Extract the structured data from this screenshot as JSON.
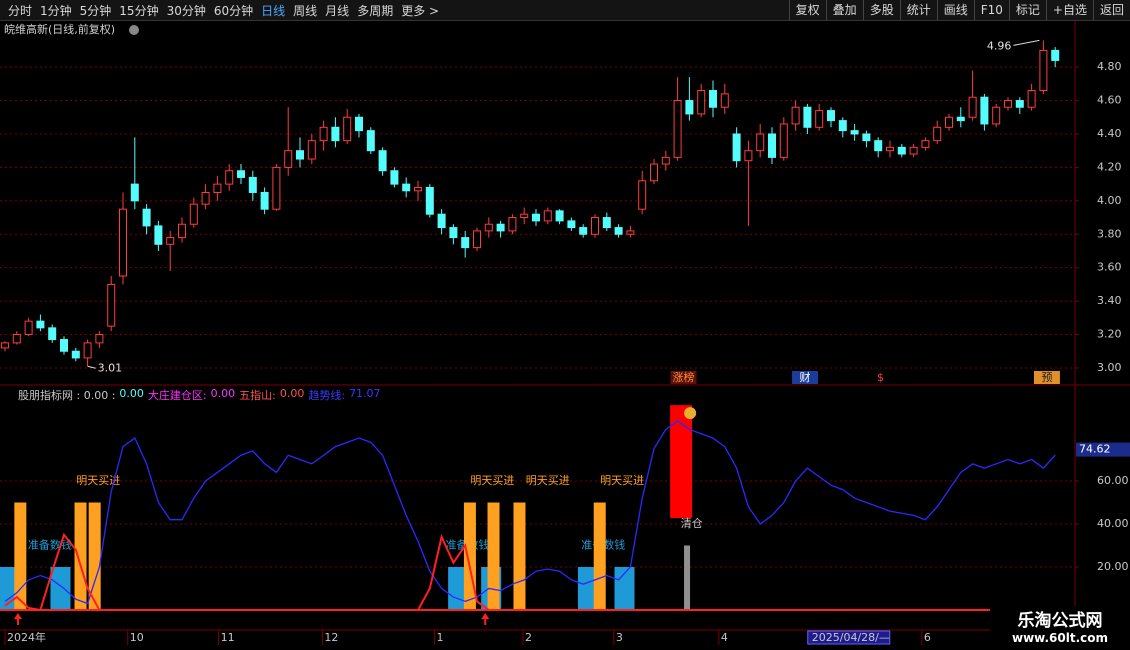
{
  "toolbar": {
    "left": [
      "分时",
      "1分钟",
      "5分钟",
      "15分钟",
      "30分钟",
      "60分钟",
      "日线",
      "周线",
      "月线",
      "多周期",
      "更多 >"
    ],
    "active": 6,
    "right": [
      "复权",
      "叠加",
      "多股",
      "统计",
      "画线",
      "F10",
      "标记",
      "+自选",
      "返回"
    ]
  },
  "title": "皖维高新(日线,前复权)",
  "chart_data": [
    {
      "type": "candlestick",
      "up_color": "#ff3c3c",
      "down_color": "#54fcfc",
      "grid_color": "#7a0000",
      "ylim": [
        2.91,
        5.07
      ],
      "yticks": [
        {
          "value": 3,
          "label": "3.00"
        },
        {
          "value": 3.2,
          "label": "3.20"
        },
        {
          "value": 3.4,
          "label": "3.40"
        },
        {
          "value": 3.6,
          "label": "3.60"
        },
        {
          "value": 3.8,
          "label": "3.80"
        },
        {
          "value": 4,
          "label": "4.00"
        },
        {
          "value": 4.2,
          "label": "4.20"
        },
        {
          "value": 4.4,
          "label": "4.40"
        },
        {
          "value": 4.6,
          "label": "4.60"
        },
        {
          "value": 4.8,
          "label": "4.80"
        }
      ],
      "ohlc": [
        [
          3.12,
          3.16,
          3.1,
          3.15
        ],
        [
          3.15,
          3.22,
          3.14,
          3.2
        ],
        [
          3.2,
          3.3,
          3.19,
          3.28
        ],
        [
          3.28,
          3.32,
          3.22,
          3.24
        ],
        [
          3.24,
          3.26,
          3.15,
          3.17
        ],
        [
          3.17,
          3.19,
          3.08,
          3.1
        ],
        [
          3.1,
          3.12,
          3.04,
          3.06
        ],
        [
          3.06,
          3.17,
          3.01,
          3.15
        ],
        [
          3.15,
          3.22,
          3.12,
          3.2
        ],
        [
          3.25,
          3.55,
          3.22,
          3.5
        ],
        [
          3.55,
          4.05,
          3.5,
          3.95
        ],
        [
          4.1,
          4.38,
          3.95,
          4.0
        ],
        [
          3.95,
          3.98,
          3.8,
          3.85
        ],
        [
          3.85,
          3.88,
          3.7,
          3.74
        ],
        [
          3.74,
          3.82,
          3.58,
          3.78
        ],
        [
          3.78,
          3.9,
          3.75,
          3.86
        ],
        [
          3.86,
          4.02,
          3.84,
          3.98
        ],
        [
          3.98,
          4.1,
          3.95,
          4.05
        ],
        [
          4.05,
          4.15,
          4.0,
          4.1
        ],
        [
          4.1,
          4.22,
          4.06,
          4.18
        ],
        [
          4.18,
          4.22,
          4.1,
          4.14
        ],
        [
          4.14,
          4.18,
          4.0,
          4.05
        ],
        [
          4.05,
          4.08,
          3.92,
          3.95
        ],
        [
          3.95,
          4.22,
          3.94,
          4.2
        ],
        [
          4.2,
          4.56,
          4.15,
          4.3
        ],
        [
          4.3,
          4.38,
          4.2,
          4.25
        ],
        [
          4.25,
          4.4,
          4.22,
          4.36
        ],
        [
          4.36,
          4.48,
          4.3,
          4.44
        ],
        [
          4.44,
          4.5,
          4.32,
          4.36
        ],
        [
          4.36,
          4.55,
          4.34,
          4.5
        ],
        [
          4.5,
          4.52,
          4.38,
          4.42
        ],
        [
          4.42,
          4.44,
          4.28,
          4.3
        ],
        [
          4.3,
          4.32,
          4.15,
          4.18
        ],
        [
          4.18,
          4.2,
          4.08,
          4.1
        ],
        [
          4.1,
          4.14,
          4.02,
          4.06
        ],
        [
          4.06,
          4.12,
          4.0,
          4.08
        ],
        [
          4.08,
          4.1,
          3.9,
          3.92
        ],
        [
          3.92,
          3.95,
          3.8,
          3.84
        ],
        [
          3.84,
          3.86,
          3.74,
          3.78
        ],
        [
          3.78,
          3.82,
          3.66,
          3.72
        ],
        [
          3.72,
          3.84,
          3.7,
          3.82
        ],
        [
          3.82,
          3.9,
          3.78,
          3.86
        ],
        [
          3.86,
          3.88,
          3.78,
          3.82
        ],
        [
          3.82,
          3.92,
          3.8,
          3.9
        ],
        [
          3.9,
          3.96,
          3.86,
          3.92
        ],
        [
          3.92,
          3.95,
          3.85,
          3.88
        ],
        [
          3.88,
          3.96,
          3.86,
          3.94
        ],
        [
          3.94,
          3.95,
          3.86,
          3.88
        ],
        [
          3.88,
          3.9,
          3.82,
          3.84
        ],
        [
          3.84,
          3.86,
          3.78,
          3.8
        ],
        [
          3.8,
          3.92,
          3.78,
          3.9
        ],
        [
          3.9,
          3.93,
          3.82,
          3.84
        ],
        [
          3.84,
          3.86,
          3.78,
          3.8
        ],
        [
          3.8,
          3.85,
          3.78,
          3.82
        ],
        [
          3.95,
          4.18,
          3.92,
          4.12
        ],
        [
          4.12,
          4.25,
          4.1,
          4.22
        ],
        [
          4.22,
          4.3,
          4.18,
          4.26
        ],
        [
          4.26,
          4.74,
          4.24,
          4.6
        ],
        [
          4.6,
          4.74,
          4.48,
          4.52
        ],
        [
          4.52,
          4.7,
          4.5,
          4.66
        ],
        [
          4.66,
          4.72,
          4.5,
          4.56
        ],
        [
          4.56,
          4.7,
          4.52,
          4.64
        ],
        [
          4.4,
          4.44,
          4.2,
          4.24
        ],
        [
          4.24,
          4.36,
          3.85,
          4.3
        ],
        [
          4.3,
          4.46,
          4.26,
          4.4
        ],
        [
          4.4,
          4.44,
          4.22,
          4.26
        ],
        [
          4.26,
          4.5,
          4.24,
          4.46
        ],
        [
          4.46,
          4.6,
          4.42,
          4.56
        ],
        [
          4.56,
          4.58,
          4.4,
          4.44
        ],
        [
          4.44,
          4.58,
          4.42,
          4.54
        ],
        [
          4.54,
          4.56,
          4.44,
          4.48
        ],
        [
          4.48,
          4.5,
          4.38,
          4.42
        ],
        [
          4.42,
          4.46,
          4.36,
          4.4
        ],
        [
          4.4,
          4.42,
          4.32,
          4.36
        ],
        [
          4.36,
          4.38,
          4.26,
          4.3
        ],
        [
          4.3,
          4.36,
          4.26,
          4.32
        ],
        [
          4.32,
          4.34,
          4.26,
          4.28
        ],
        [
          4.28,
          4.34,
          4.26,
          4.32
        ],
        [
          4.32,
          4.38,
          4.3,
          4.36
        ],
        [
          4.36,
          4.48,
          4.34,
          4.44
        ],
        [
          4.44,
          4.52,
          4.42,
          4.5
        ],
        [
          4.5,
          4.56,
          4.44,
          4.48
        ],
        [
          4.5,
          4.78,
          4.48,
          4.62
        ],
        [
          4.62,
          4.64,
          4.42,
          4.46
        ],
        [
          4.46,
          4.58,
          4.44,
          4.56
        ],
        [
          4.56,
          4.62,
          4.54,
          4.6
        ],
        [
          4.6,
          4.62,
          4.52,
          4.56
        ],
        [
          4.56,
          4.7,
          4.54,
          4.66
        ],
        [
          4.66,
          4.96,
          4.64,
          4.9
        ],
        [
          4.9,
          4.92,
          4.8,
          4.84
        ]
      ],
      "annotations": [
        {
          "label": "4.96",
          "value": 4.96,
          "at": 88
        },
        {
          "label": "3.01",
          "value": 3.01,
          "at": 7
        }
      ],
      "markers": [
        {
          "label": "涨榜",
          "at": 57.5,
          "color": "#ff8c28",
          "bg": "#5a1010"
        },
        {
          "label": "财",
          "at": 67.8,
          "color": "#ffffff",
          "bg": "#1c3c9c"
        },
        {
          "label": "$",
          "at": 74.2,
          "color": "#ff3c3c",
          "bg": "#000000"
        },
        {
          "label": "预",
          "at": 88.3,
          "color": "#202020",
          "bg": "#e0902a"
        }
      ]
    },
    {
      "type": "indicator",
      "grid_color": "#7a0000",
      "ylim": [
        -7,
        97.7
      ],
      "yticks": [
        {
          "value": 20,
          "label": "20.00"
        },
        {
          "value": 40,
          "label": "40.00"
        },
        {
          "value": 60,
          "label": "60.00"
        }
      ],
      "current": {
        "label": "74.62",
        "value": 74.62
      },
      "legend": [
        {
          "label": "股朋指标网 : 0.00 :",
          "color": "#c8c8c8"
        },
        {
          "label": "0.00",
          "color": "#54fcfc"
        },
        {
          "label": "大庄建仓区:",
          "color": "#ff30ff"
        },
        {
          "label": "0.00",
          "color": "#ff30ff"
        },
        {
          "label": "五指山:",
          "color": "#ff5050"
        },
        {
          "label": "0.00",
          "color": "#ff5050"
        },
        {
          "label": "趋势线:",
          "color": "#3838ff"
        },
        {
          "label": "71.07",
          "color": "#3838ff"
        }
      ],
      "series": [
        {
          "color": "#2a2aff",
          "values": [
            4,
            8,
            14,
            16,
            14,
            10,
            5,
            3,
            20,
            55,
            76,
            80,
            68,
            50,
            42,
            42,
            52,
            60,
            64,
            68,
            72,
            74,
            68,
            64,
            72,
            70,
            68,
            72,
            76,
            78,
            80,
            78,
            72,
            58,
            44,
            32,
            18,
            10,
            6,
            4,
            6,
            10,
            9,
            12,
            14,
            18,
            19,
            18,
            14,
            12,
            14,
            16,
            14,
            20,
            52,
            75,
            84,
            88,
            84,
            82,
            80,
            76,
            66,
            48,
            40,
            44,
            50,
            60,
            66,
            62,
            58,
            56,
            52,
            50,
            48,
            46,
            45,
            44,
            42,
            48,
            56,
            64,
            68,
            66,
            68,
            70,
            68,
            70,
            66,
            72
          ]
        },
        {
          "color": "#ff2020",
          "values": [
            2,
            6,
            1,
            0,
            18,
            35,
            28,
            10,
            0,
            0,
            0,
            0,
            0,
            0,
            0,
            0,
            0,
            0,
            0,
            0,
            0,
            0,
            0,
            0,
            0,
            0,
            0,
            0,
            0,
            0,
            0,
            0,
            0,
            0,
            0,
            0,
            10,
            34,
            22,
            30,
            4,
            0,
            0,
            0,
            0,
            0,
            0,
            0,
            0,
            0,
            0,
            0,
            0,
            0,
            0,
            0,
            0,
            0,
            0,
            0,
            0,
            0,
            0,
            0,
            0,
            0,
            0,
            0,
            0,
            0,
            0,
            0,
            0,
            0,
            0,
            0,
            0,
            0,
            0,
            0,
            0,
            0,
            0,
            0,
            0,
            0,
            0,
            0,
            0,
            0
          ]
        }
      ],
      "bars": [
        {
          "color": "#1e9bd7",
          "x": [
            0.3,
            4.7,
            38.4,
            41.2,
            49.4,
            52.5
          ],
          "values": [
            20,
            20,
            20,
            20,
            20,
            20
          ]
        },
        {
          "color": "#ffa020",
          "x": [
            1.3,
            6.4,
            7.6,
            39.4,
            41.4,
            43.6,
            50.4
          ],
          "values": [
            50,
            50,
            50,
            50,
            50,
            50,
            50
          ]
        }
      ],
      "exit_bar": {
        "color": "#ff0000",
        "at": 57.3,
        "range": [
          42.8,
          95.3
        ]
      },
      "gray_bar": {
        "color": "#909090",
        "at": 57.8,
        "value": 30
      },
      "texts": [
        {
          "label": "准备数钱",
          "at": 3.8,
          "value": 30,
          "color": "#1e9bd7"
        },
        {
          "label": "准备数钱",
          "at": 39.2,
          "value": 30,
          "color": "#1e9bd7"
        },
        {
          "label": "准备数钱",
          "at": 50.7,
          "value": 30,
          "color": "#1e9bd7"
        },
        {
          "label": "明天买进",
          "at": 7.9,
          "value": 60,
          "color": "#ffa020"
        },
        {
          "label": "明天买进",
          "at": 41.3,
          "value": 60,
          "color": "#ffa020"
        },
        {
          "label": "明天买进",
          "at": 46,
          "value": 60,
          "color": "#ffa020"
        },
        {
          "label": "明天买进",
          "at": 52.3,
          "value": 60,
          "color": "#ffa020"
        },
        {
          "label": "清仓",
          "at": 58.2,
          "value": 40,
          "color": "#c8c8c8"
        }
      ],
      "arrows": {
        "color": "#ff2020",
        "at": [
          1.1,
          40.7
        ]
      }
    }
  ],
  "x_axis": {
    "ticks": [
      {
        "value": 0,
        "label": "2024年"
      },
      {
        "value": 10.4,
        "label": "10"
      },
      {
        "value": 18.1,
        "label": "11"
      },
      {
        "value": 26.9,
        "label": "12"
      },
      {
        "value": 36.4,
        "label": "1"
      },
      {
        "value": 43.9,
        "label": "2"
      },
      {
        "value": 51.6,
        "label": "3"
      },
      {
        "value": 60.5,
        "label": "4"
      },
      {
        "value": 68.2,
        "label": "2025/04/28/—"
      },
      {
        "value": 77.7,
        "label": "6"
      }
    ],
    "highlight": 8
  },
  "watermark": {
    "name": "乐淘公式网",
    "url": "www.60lt.com"
  }
}
